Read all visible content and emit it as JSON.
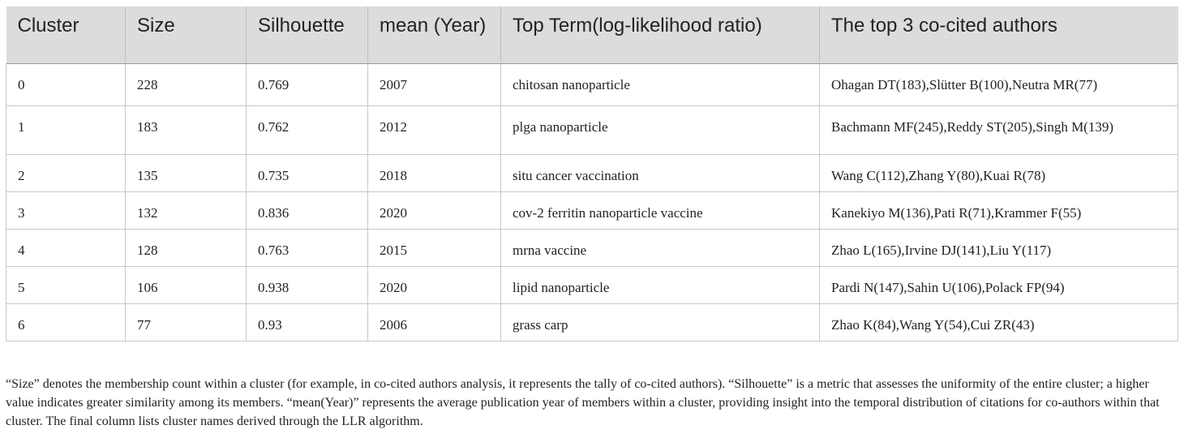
{
  "table": {
    "headers": [
      "Cluster",
      "Size",
      "Silhouette",
      "mean (Year)",
      "Top Term(log-likelihood ratio)",
      "The top 3 co-cited authors"
    ],
    "rows": [
      [
        "0",
        "228",
        "0.769",
        "2007",
        "chitosan nanoparticle",
        "Ohagan DT(183),Slütter B(100),Neutra MR(77)"
      ],
      [
        "1",
        "183",
        "0.762",
        "2012",
        "plga nanoparticle",
        "Bachmann MF(245),Reddy ST(205),Singh M(139)"
      ],
      [
        "2",
        "135",
        "0.735",
        "2018",
        "situ cancer vaccination",
        "Wang C(112),Zhang Y(80),Kuai R(78)"
      ],
      [
        "3",
        "132",
        "0.836",
        "2020",
        "cov-2 ferritin nanoparticle vaccine",
        "Kanekiyo M(136),Pati R(71),Krammer F(55)"
      ],
      [
        "4",
        "128",
        "0.763",
        "2015",
        "mrna vaccine",
        "Zhao L(165),Irvine DJ(141),Liu Y(117)"
      ],
      [
        "5",
        "106",
        "0.938",
        "2020",
        "lipid nanoparticle",
        "Pardi N(147),Sahin U(106),Polack FP(94)"
      ],
      [
        "6",
        "77",
        "0.93",
        "2006",
        "grass carp",
        "Zhao K(84),Wang Y(54),Cui ZR(43)"
      ]
    ]
  },
  "footnote": "“Size” denotes the membership count within a cluster (for example, in co-cited authors analysis, it represents the tally of co-cited authors). “Silhouette” is a metric that assesses the uniformity of the entire cluster; a higher value indicates greater similarity among its members. “mean(Year)” represents the average publication year of members within a cluster, providing insight into the temporal distribution of citations for co-authors within that cluster. The final column lists cluster names derived through the LLR algorithm."
}
